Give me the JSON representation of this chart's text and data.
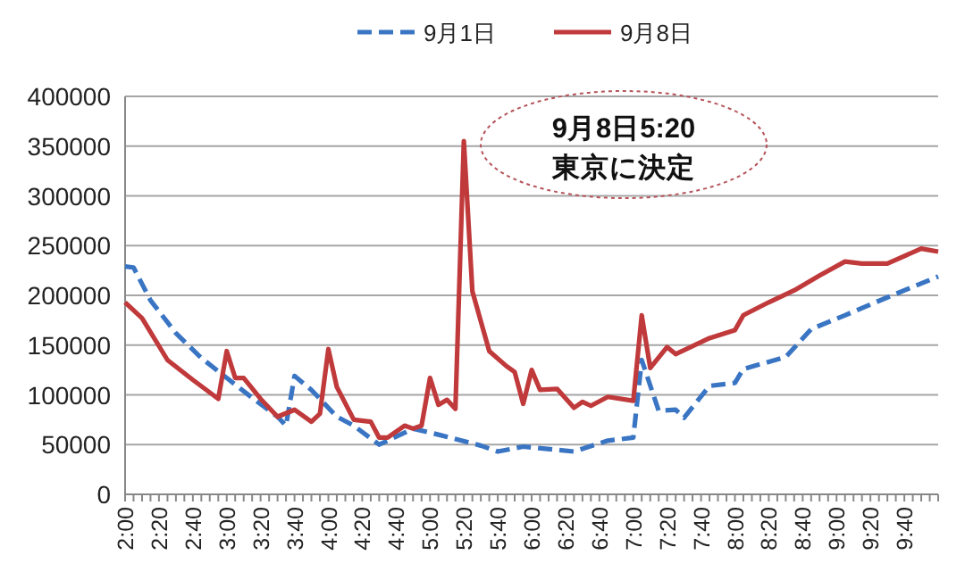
{
  "chart_data": {
    "type": "line",
    "legend": "top",
    "grid": "y",
    "series": [
      {
        "name": "9月1日",
        "color": "#3a75c4",
        "line_style": "dashed",
        "x": [
          2,
          2.083,
          2.25,
          2.5,
          2.75,
          3,
          3.25,
          3.5,
          3.583,
          3.667,
          3.833,
          4.083,
          4.25,
          4.5,
          4.833,
          5.083,
          5.5,
          5.667,
          5.917,
          6.417,
          6.75,
          7,
          7.083,
          7.25,
          7.417,
          7.5,
          7.75,
          8,
          8.083,
          8.5,
          8.75,
          9.083,
          9.5,
          10
        ],
        "values": [
          229000,
          228000,
          195000,
          162000,
          137000,
          117000,
          97000,
          78000,
          69000,
          119000,
          105000,
          78000,
          69000,
          50000,
          66000,
          60000,
          49000,
          43000,
          48000,
          43000,
          54000,
          57000,
          135000,
          84000,
          85000,
          77000,
          109000,
          112000,
          126000,
          138000,
          166000,
          180000,
          198000,
          219000
        ]
      },
      {
        "name": "9月8日",
        "color": "#c0393b",
        "line_style": "solid",
        "x": [
          2,
          2.167,
          2.417,
          2.667,
          2.917,
          3,
          3.083,
          3.167,
          3.333,
          3.5,
          3.667,
          3.833,
          3.917,
          4,
          4.083,
          4.25,
          4.417,
          4.5,
          4.583,
          4.75,
          4.833,
          4.917,
          5,
          5.083,
          5.167,
          5.25,
          5.333,
          5.417,
          5.583,
          5.75,
          5.833,
          5.917,
          6,
          6.083,
          6.25,
          6.417,
          6.5,
          6.583,
          6.75,
          7,
          7.083,
          7.167,
          7.333,
          7.417,
          7.75,
          8,
          8.083,
          8.333,
          8.583,
          8.833,
          9.083,
          9.25,
          9.5,
          9.833,
          10
        ],
        "values": [
          193000,
          177000,
          135000,
          115000,
          96000,
          144000,
          117000,
          117000,
          96000,
          78000,
          85000,
          73000,
          81000,
          146000,
          108000,
          75000,
          73000,
          57000,
          57000,
          69000,
          66000,
          69000,
          117000,
          90000,
          95000,
          86000,
          355000,
          204000,
          144000,
          129000,
          123000,
          91000,
          125000,
          105000,
          106000,
          87000,
          93000,
          89000,
          98000,
          94000,
          180000,
          127000,
          148000,
          141000,
          157000,
          165000,
          180000,
          193000,
          205000,
          220000,
          234000,
          232000,
          232000,
          247000,
          244000
        ]
      }
    ],
    "xlim": [
      2,
      10
    ],
    "xticks": [
      {
        "value": 2,
        "label": "2:00"
      },
      {
        "value": 2.083,
        "label": null
      },
      {
        "value": 2.167,
        "label": null
      },
      {
        "value": 2.25,
        "label": null
      },
      {
        "value": 2.333,
        "label": "2:20"
      },
      {
        "value": 2.417,
        "label": null
      },
      {
        "value": 2.5,
        "label": null
      },
      {
        "value": 2.583,
        "label": null
      },
      {
        "value": 2.667,
        "label": "2:40"
      },
      {
        "value": 2.75,
        "label": null
      },
      {
        "value": 2.833,
        "label": null
      },
      {
        "value": 2.917,
        "label": null
      },
      {
        "value": 3,
        "label": "3:00"
      },
      {
        "value": 3.083,
        "label": null
      },
      {
        "value": 3.167,
        "label": null
      },
      {
        "value": 3.25,
        "label": null
      },
      {
        "value": 3.333,
        "label": "3:20"
      },
      {
        "value": 3.417,
        "label": null
      },
      {
        "value": 3.5,
        "label": null
      },
      {
        "value": 3.583,
        "label": null
      },
      {
        "value": 3.667,
        "label": "3:40"
      },
      {
        "value": 3.75,
        "label": null
      },
      {
        "value": 3.833,
        "label": null
      },
      {
        "value": 3.917,
        "label": null
      },
      {
        "value": 4,
        "label": "4:00"
      },
      {
        "value": 4.083,
        "label": null
      },
      {
        "value": 4.167,
        "label": null
      },
      {
        "value": 4.25,
        "label": null
      },
      {
        "value": 4.333,
        "label": "4:20"
      },
      {
        "value": 4.417,
        "label": null
      },
      {
        "value": 4.5,
        "label": null
      },
      {
        "value": 4.583,
        "label": null
      },
      {
        "value": 4.667,
        "label": "4:40"
      },
      {
        "value": 4.75,
        "label": null
      },
      {
        "value": 4.833,
        "label": null
      },
      {
        "value": 4.917,
        "label": null
      },
      {
        "value": 5,
        "label": "5:00"
      },
      {
        "value": 5.083,
        "label": null
      },
      {
        "value": 5.167,
        "label": null
      },
      {
        "value": 5.25,
        "label": null
      },
      {
        "value": 5.333,
        "label": "5:20"
      },
      {
        "value": 5.417,
        "label": null
      },
      {
        "value": 5.5,
        "label": null
      },
      {
        "value": 5.583,
        "label": null
      },
      {
        "value": 5.667,
        "label": "5:40"
      },
      {
        "value": 5.75,
        "label": null
      },
      {
        "value": 5.833,
        "label": null
      },
      {
        "value": 5.917,
        "label": null
      },
      {
        "value": 6,
        "label": "6:00"
      },
      {
        "value": 6.083,
        "label": null
      },
      {
        "value": 6.167,
        "label": null
      },
      {
        "value": 6.25,
        "label": null
      },
      {
        "value": 6.333,
        "label": "6:20"
      },
      {
        "value": 6.417,
        "label": null
      },
      {
        "value": 6.5,
        "label": null
      },
      {
        "value": 6.583,
        "label": null
      },
      {
        "value": 6.667,
        "label": "6:40"
      },
      {
        "value": 6.75,
        "label": null
      },
      {
        "value": 6.833,
        "label": null
      },
      {
        "value": 6.917,
        "label": null
      },
      {
        "value": 7,
        "label": "7:00"
      },
      {
        "value": 7.083,
        "label": null
      },
      {
        "value": 7.167,
        "label": null
      },
      {
        "value": 7.25,
        "label": null
      },
      {
        "value": 7.333,
        "label": "7:20"
      },
      {
        "value": 7.417,
        "label": null
      },
      {
        "value": 7.5,
        "label": null
      },
      {
        "value": 7.583,
        "label": null
      },
      {
        "value": 7.667,
        "label": "7:40"
      },
      {
        "value": 7.75,
        "label": null
      },
      {
        "value": 7.833,
        "label": null
      },
      {
        "value": 7.917,
        "label": null
      },
      {
        "value": 8,
        "label": "8:00"
      },
      {
        "value": 8.083,
        "label": null
      },
      {
        "value": 8.167,
        "label": null
      },
      {
        "value": 8.25,
        "label": null
      },
      {
        "value": 8.333,
        "label": "8:20"
      },
      {
        "value": 8.417,
        "label": null
      },
      {
        "value": 8.5,
        "label": null
      },
      {
        "value": 8.583,
        "label": null
      },
      {
        "value": 8.667,
        "label": "8:40"
      },
      {
        "value": 8.75,
        "label": null
      },
      {
        "value": 8.833,
        "label": null
      },
      {
        "value": 8.917,
        "label": null
      },
      {
        "value": 9,
        "label": "9:00"
      },
      {
        "value": 9.083,
        "label": null
      },
      {
        "value": 9.167,
        "label": null
      },
      {
        "value": 9.25,
        "label": null
      },
      {
        "value": 9.333,
        "label": "9:20"
      },
      {
        "value": 9.417,
        "label": null
      },
      {
        "value": 9.5,
        "label": null
      },
      {
        "value": 9.583,
        "label": null
      },
      {
        "value": 9.667,
        "label": "9:40"
      },
      {
        "value": 9.75,
        "label": null
      },
      {
        "value": 9.833,
        "label": null
      },
      {
        "value": 9.917,
        "label": null
      },
      {
        "value": 10,
        "label": null
      }
    ],
    "ylim": [
      0,
      400000
    ],
    "yticks": [
      0,
      50000,
      100000,
      150000,
      200000,
      250000,
      300000,
      350000,
      400000
    ],
    "annotations": [
      "9月8日5:20\n東京に決定"
    ]
  }
}
